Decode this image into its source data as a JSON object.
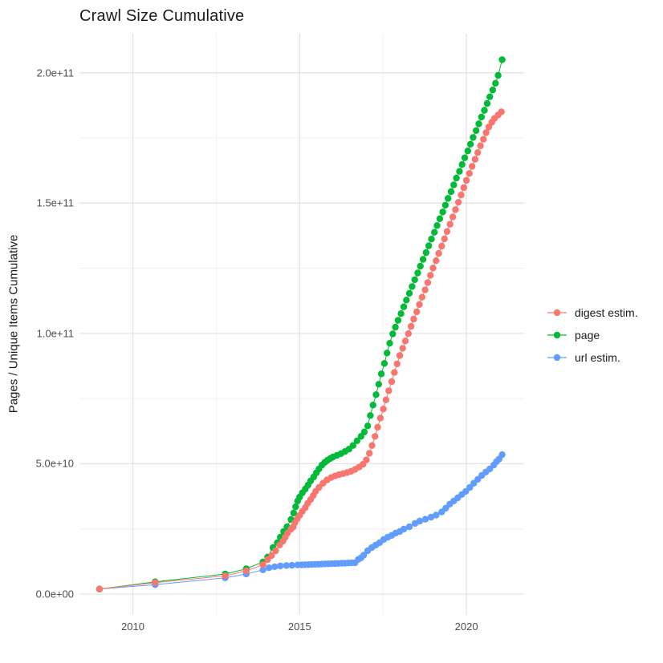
{
  "title": "Crawl Size Cumulative",
  "y_axis_title": "Pages / Unique Items Cumulative",
  "colors": {
    "digest": "#F8766D",
    "page": "#00BA38",
    "url": "#619CFF"
  },
  "legend": {
    "items": [
      {
        "id": "digest",
        "label": "digest estim."
      },
      {
        "id": "page",
        "label": "page"
      },
      {
        "id": "url",
        "label": "url estim."
      }
    ]
  },
  "chart_data": {
    "type": "line",
    "title": "Crawl Size Cumulative",
    "xlabel": "",
    "ylabel": "Pages / Unique Items Cumulative",
    "x_unit": "year",
    "y_unit": "count (values in billions, 1e9)",
    "xlim": [
      2008.4,
      2021.73
    ],
    "ylim_e9": [
      -8,
      215
    ],
    "grid": true,
    "legend_position": "right",
    "x_ticks": [
      {
        "value": 2010,
        "label": "2010"
      },
      {
        "value": 2015,
        "label": "2015"
      },
      {
        "value": 2020,
        "label": "2020"
      }
    ],
    "x_minor": [
      2012.5,
      2017.5
    ],
    "y_ticks": [
      {
        "value_e9": 0,
        "label": "0.0e+00"
      },
      {
        "value_e9": 50,
        "label": "5.0e+10"
      },
      {
        "value_e9": 100,
        "label": "1.0e+11"
      },
      {
        "value_e9": 150,
        "label": "1.5e+11"
      },
      {
        "value_e9": 200,
        "label": "2.0e+11"
      }
    ],
    "y_minor_e9": [
      25,
      75,
      125,
      175
    ],
    "draw_order": [
      "url estim.",
      "page",
      "digest estim."
    ],
    "series": [
      {
        "name": "digest estim.",
        "color": "#F8766D",
        "points": [
          [
            2009.0,
            1.9
          ],
          [
            2010.67,
            4.4
          ],
          [
            2012.77,
            7.0
          ],
          [
            2013.4,
            8.9
          ],
          [
            2013.9,
            11.3
          ],
          [
            2014.04,
            13.2
          ],
          [
            2014.16,
            14.8
          ],
          [
            2014.28,
            16.6
          ],
          [
            2014.4,
            18.8
          ],
          [
            2014.5,
            20.3
          ],
          [
            2014.57,
            21.8
          ],
          [
            2014.64,
            23.4
          ],
          [
            2014.74,
            24.9
          ],
          [
            2014.81,
            25.8
          ],
          [
            2014.86,
            27.4
          ],
          [
            2014.93,
            28.9
          ],
          [
            2015.0,
            30.2
          ],
          [
            2015.08,
            31.7
          ],
          [
            2015.17,
            33.2
          ],
          [
            2015.24,
            34.8
          ],
          [
            2015.33,
            36.3
          ],
          [
            2015.41,
            37.8
          ],
          [
            2015.48,
            39.4
          ],
          [
            2015.58,
            40.9
          ],
          [
            2015.7,
            42.5
          ],
          [
            2015.82,
            43.8
          ],
          [
            2015.94,
            44.7
          ],
          [
            2016.06,
            45.3
          ],
          [
            2016.18,
            45.8
          ],
          [
            2016.3,
            46.2
          ],
          [
            2016.42,
            46.6
          ],
          [
            2016.54,
            47.1
          ],
          [
            2016.66,
            47.8
          ],
          [
            2016.78,
            48.7
          ],
          [
            2016.9,
            49.8
          ],
          [
            2017.0,
            51.5
          ],
          [
            2017.09,
            54.0
          ],
          [
            2017.17,
            57.0
          ],
          [
            2017.26,
            60.5
          ],
          [
            2017.34,
            64.0
          ],
          [
            2017.42,
            67.5
          ],
          [
            2017.51,
            71.0
          ],
          [
            2017.59,
            74.5
          ],
          [
            2017.67,
            78.0
          ],
          [
            2017.76,
            81.5
          ],
          [
            2017.84,
            85.0
          ],
          [
            2017.92,
            88.3
          ],
          [
            2018.0,
            91.5
          ],
          [
            2018.09,
            94.3
          ],
          [
            2018.17,
            97.1
          ],
          [
            2018.26,
            99.9
          ],
          [
            2018.34,
            102.7
          ],
          [
            2018.42,
            105.5
          ],
          [
            2018.51,
            108.3
          ],
          [
            2018.59,
            111.1
          ],
          [
            2018.67,
            113.9
          ],
          [
            2018.76,
            116.7
          ],
          [
            2018.84,
            119.5
          ],
          [
            2018.92,
            122.3
          ],
          [
            2019.0,
            125.1
          ],
          [
            2019.09,
            127.9
          ],
          [
            2019.17,
            130.7
          ],
          [
            2019.26,
            133.5
          ],
          [
            2019.34,
            136.3
          ],
          [
            2019.42,
            139.1
          ],
          [
            2019.51,
            141.9
          ],
          [
            2019.59,
            144.7
          ],
          [
            2019.67,
            147.5
          ],
          [
            2019.76,
            150.3
          ],
          [
            2019.84,
            153.1
          ],
          [
            2019.92,
            155.9
          ],
          [
            2020.0,
            158.7
          ],
          [
            2020.09,
            161.4
          ],
          [
            2020.17,
            164.1
          ],
          [
            2020.26,
            166.8
          ],
          [
            2020.34,
            169.4
          ],
          [
            2020.42,
            172.0
          ],
          [
            2020.51,
            174.5
          ],
          [
            2020.59,
            177.0
          ],
          [
            2020.67,
            179.2
          ],
          [
            2020.76,
            181.0
          ],
          [
            2020.84,
            182.5
          ],
          [
            2020.95,
            183.8
          ],
          [
            2021.05,
            185.0
          ]
        ]
      },
      {
        "name": "page",
        "color": "#00BA38",
        "points": [
          [
            2009.0,
            1.9
          ],
          [
            2010.67,
            4.7
          ],
          [
            2012.77,
            7.7
          ],
          [
            2013.4,
            9.7
          ],
          [
            2013.9,
            12.3
          ],
          [
            2014.04,
            14.2
          ],
          [
            2014.2,
            17.8
          ],
          [
            2014.33,
            19.7
          ],
          [
            2014.42,
            21.8
          ],
          [
            2014.52,
            24.0
          ],
          [
            2014.62,
            25.8
          ],
          [
            2014.74,
            28.6
          ],
          [
            2014.82,
            31.1
          ],
          [
            2014.88,
            33.5
          ],
          [
            2014.94,
            35.7
          ],
          [
            2015.0,
            37.2
          ],
          [
            2015.08,
            38.8
          ],
          [
            2015.17,
            40.3
          ],
          [
            2015.25,
            41.8
          ],
          [
            2015.33,
            43.4
          ],
          [
            2015.42,
            44.9
          ],
          [
            2015.5,
            46.5
          ],
          [
            2015.58,
            48.0
          ],
          [
            2015.67,
            49.5
          ],
          [
            2015.75,
            50.5
          ],
          [
            2015.83,
            51.3
          ],
          [
            2015.92,
            52.0
          ],
          [
            2016.0,
            52.6
          ],
          [
            2016.12,
            53.2
          ],
          [
            2016.24,
            53.9
          ],
          [
            2016.36,
            54.7
          ],
          [
            2016.48,
            55.6
          ],
          [
            2016.6,
            57.0
          ],
          [
            2016.72,
            58.8
          ],
          [
            2016.84,
            60.5
          ],
          [
            2016.94,
            62.2
          ],
          [
            2017.04,
            64.5
          ],
          [
            2017.12,
            68.5
          ],
          [
            2017.2,
            72.5
          ],
          [
            2017.29,
            76.5
          ],
          [
            2017.37,
            80.5
          ],
          [
            2017.45,
            84.5
          ],
          [
            2017.54,
            88.5
          ],
          [
            2017.62,
            92.5
          ],
          [
            2017.7,
            96.2
          ],
          [
            2017.79,
            99.8
          ],
          [
            2017.87,
            102.4
          ],
          [
            2017.95,
            105.0
          ],
          [
            2018.04,
            107.6
          ],
          [
            2018.12,
            110.2
          ],
          [
            2018.2,
            112.8
          ],
          [
            2018.29,
            115.4
          ],
          [
            2018.37,
            118.0
          ],
          [
            2018.45,
            120.6
          ],
          [
            2018.54,
            123.2
          ],
          [
            2018.62,
            125.8
          ],
          [
            2018.7,
            128.4
          ],
          [
            2018.79,
            131.0
          ],
          [
            2018.87,
            133.6
          ],
          [
            2018.95,
            136.2
          ],
          [
            2019.04,
            138.8
          ],
          [
            2019.12,
            141.4
          ],
          [
            2019.2,
            144.0
          ],
          [
            2019.29,
            146.6
          ],
          [
            2019.37,
            149.2
          ],
          [
            2019.45,
            151.8
          ],
          [
            2019.54,
            154.4
          ],
          [
            2019.62,
            157.0
          ],
          [
            2019.7,
            159.6
          ],
          [
            2019.79,
            162.2
          ],
          [
            2019.87,
            164.8
          ],
          [
            2019.95,
            167.4
          ],
          [
            2020.04,
            170.0
          ],
          [
            2020.12,
            172.6
          ],
          [
            2020.2,
            175.2
          ],
          [
            2020.29,
            177.8
          ],
          [
            2020.37,
            180.4
          ],
          [
            2020.45,
            183.0
          ],
          [
            2020.54,
            185.6
          ],
          [
            2020.62,
            188.2
          ],
          [
            2020.7,
            190.8
          ],
          [
            2020.79,
            193.4
          ],
          [
            2020.87,
            196.0
          ],
          [
            2020.95,
            199.0
          ],
          [
            2021.07,
            205.0
          ]
        ]
      },
      {
        "name": "url estim.",
        "color": "#619CFF",
        "points": [
          [
            2009.0,
            1.9
          ],
          [
            2010.67,
            3.6
          ],
          [
            2012.77,
            6.2
          ],
          [
            2013.4,
            7.7
          ],
          [
            2013.9,
            9.3
          ],
          [
            2014.08,
            10.1
          ],
          [
            2014.25,
            10.5
          ],
          [
            2014.42,
            10.8
          ],
          [
            2014.6,
            10.95
          ],
          [
            2014.77,
            11.05
          ],
          [
            2014.94,
            11.15
          ],
          [
            2015.06,
            11.2
          ],
          [
            2015.16,
            11.25
          ],
          [
            2015.26,
            11.3
          ],
          [
            2015.36,
            11.35
          ],
          [
            2015.46,
            11.4
          ],
          [
            2015.56,
            11.45
          ],
          [
            2015.66,
            11.5
          ],
          [
            2015.76,
            11.55
          ],
          [
            2015.86,
            11.6
          ],
          [
            2015.96,
            11.65
          ],
          [
            2016.06,
            11.7
          ],
          [
            2016.16,
            11.75
          ],
          [
            2016.26,
            11.8
          ],
          [
            2016.36,
            11.85
          ],
          [
            2016.46,
            11.9
          ],
          [
            2016.56,
            11.95
          ],
          [
            2016.66,
            12.0
          ],
          [
            2016.76,
            13.3
          ],
          [
            2016.84,
            13.9
          ],
          [
            2016.92,
            14.9
          ],
          [
            2017.04,
            16.6
          ],
          [
            2017.16,
            17.8
          ],
          [
            2017.28,
            18.8
          ],
          [
            2017.4,
            19.7
          ],
          [
            2017.52,
            20.9
          ],
          [
            2017.64,
            21.8
          ],
          [
            2017.76,
            22.5
          ],
          [
            2017.88,
            23.4
          ],
          [
            2018.0,
            24.0
          ],
          [
            2018.12,
            24.9
          ],
          [
            2018.29,
            25.8
          ],
          [
            2018.46,
            27.1
          ],
          [
            2018.6,
            28.0
          ],
          [
            2018.77,
            28.7
          ],
          [
            2018.94,
            29.5
          ],
          [
            2019.09,
            30.3
          ],
          [
            2019.26,
            31.5
          ],
          [
            2019.38,
            32.9
          ],
          [
            2019.5,
            34.5
          ],
          [
            2019.62,
            35.7
          ],
          [
            2019.74,
            36.9
          ],
          [
            2019.86,
            38.2
          ],
          [
            2019.98,
            39.4
          ],
          [
            2020.1,
            40.9
          ],
          [
            2020.22,
            42.5
          ],
          [
            2020.34,
            44.0
          ],
          [
            2020.46,
            45.5
          ],
          [
            2020.58,
            46.8
          ],
          [
            2020.7,
            48.0
          ],
          [
            2020.82,
            49.5
          ],
          [
            2020.9,
            50.8
          ],
          [
            2020.98,
            51.8
          ],
          [
            2021.07,
            53.5
          ]
        ]
      }
    ]
  }
}
